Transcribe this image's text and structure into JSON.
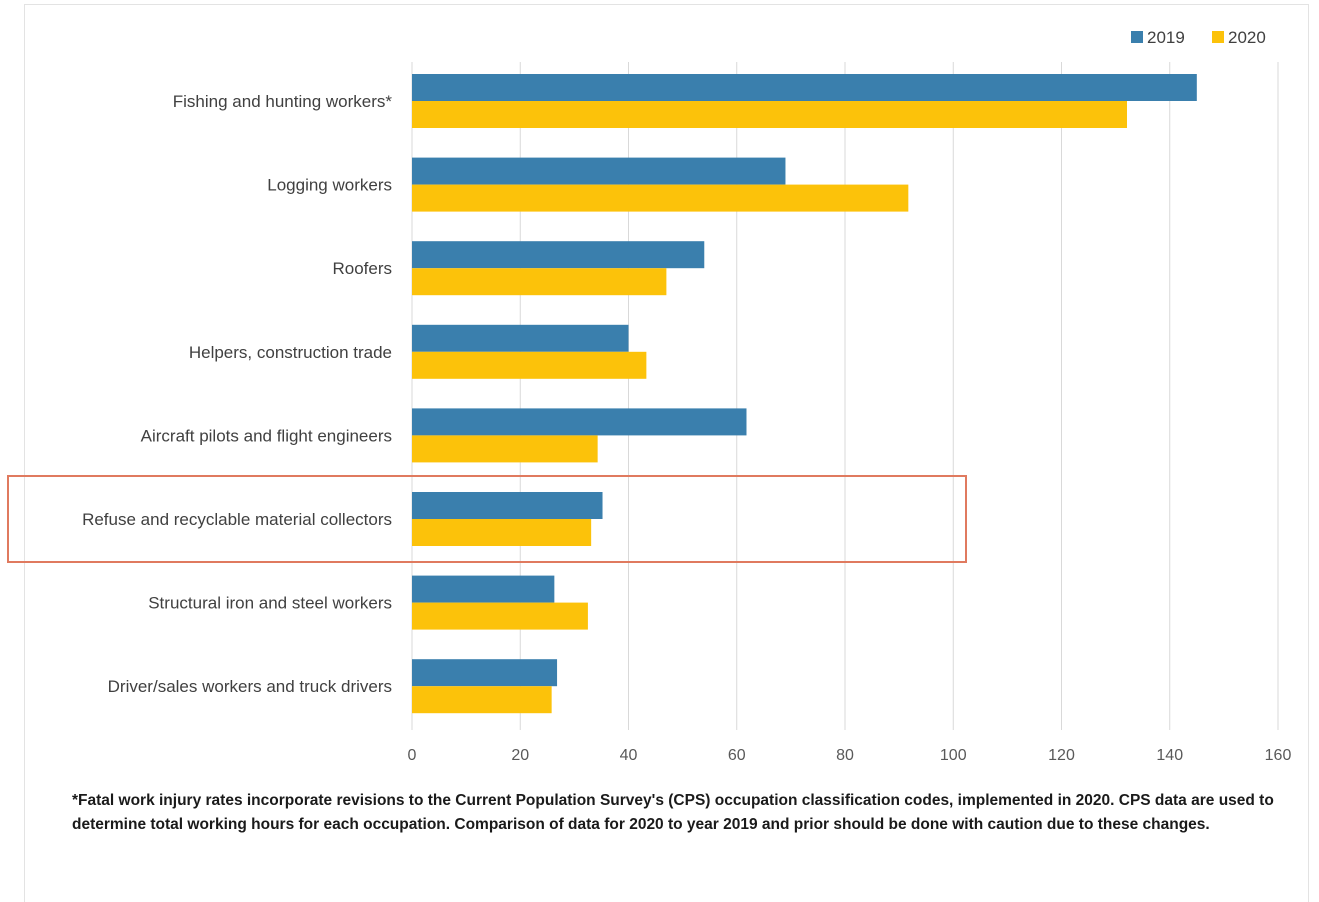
{
  "chart_data": {
    "type": "bar",
    "orientation": "horizontal",
    "categories": [
      "Fishing and hunting workers*",
      "Logging workers",
      "Roofers",
      "Helpers, construction trade",
      "Aircraft pilots and flight engineers",
      "Refuse and recyclable material collectors",
      "Structural iron and steel workers",
      "Driver/sales workers and truck drivers"
    ],
    "series": [
      {
        "name": "2019",
        "color": "#3a7fad",
        "values": [
          145.0,
          69.0,
          54.0,
          40.0,
          61.8,
          35.2,
          26.3,
          26.8
        ]
      },
      {
        "name": "2020",
        "color": "#fcc20a",
        "values": [
          132.1,
          91.7,
          47.0,
          43.3,
          34.3,
          33.1,
          32.5,
          25.8
        ]
      }
    ],
    "xlim": [
      0,
      160
    ],
    "xticks": [
      0,
      20,
      40,
      60,
      80,
      100,
      120,
      140,
      160
    ],
    "grid": "vertical",
    "legend": "top-right",
    "highlighted_category": "Refuse and recyclable material collectors",
    "highlight_color": "#e07a5f"
  },
  "footnote": "*Fatal work injury rates incorporate revisions to the Current Population Survey's (CPS) occupation classification codes, implemented in 2020. CPS data are used to determine total working hours for each occupation. Comparison of data for 2020 to year 2019 and prior should be done with caution due to these changes."
}
